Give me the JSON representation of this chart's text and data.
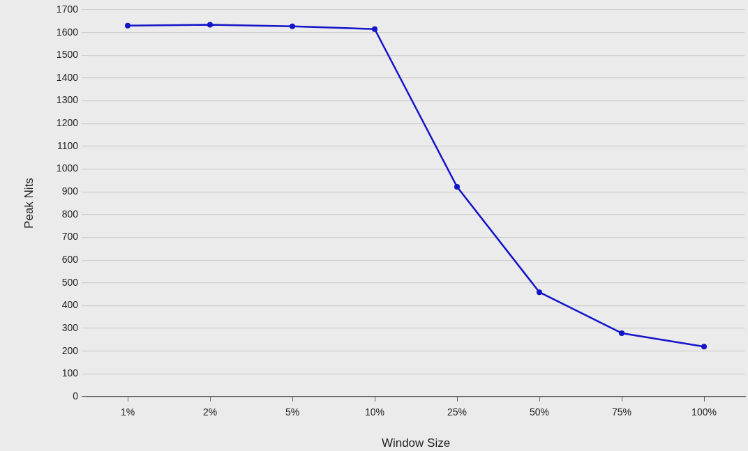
{
  "chart_data": {
    "type": "line",
    "xlabel": "Window Size",
    "ylabel": "Peak Nits",
    "categories": [
      "1%",
      "2%",
      "5%",
      "10%",
      "25%",
      "50%",
      "75%",
      "100%"
    ],
    "series": [
      {
        "color": "#1414c8",
        "values": [
          1630,
          1634,
          1627,
          1615,
          922,
          459,
          279,
          220
        ]
      }
    ],
    "ylim": [
      0,
      1700
    ],
    "yticks": [
      0,
      100,
      200,
      300,
      400,
      500,
      600,
      700,
      800,
      900,
      1000,
      1100,
      1200,
      1300,
      1400,
      1500,
      1600,
      1700
    ],
    "grid": "y",
    "marker": "circle",
    "line_style": "solid"
  }
}
